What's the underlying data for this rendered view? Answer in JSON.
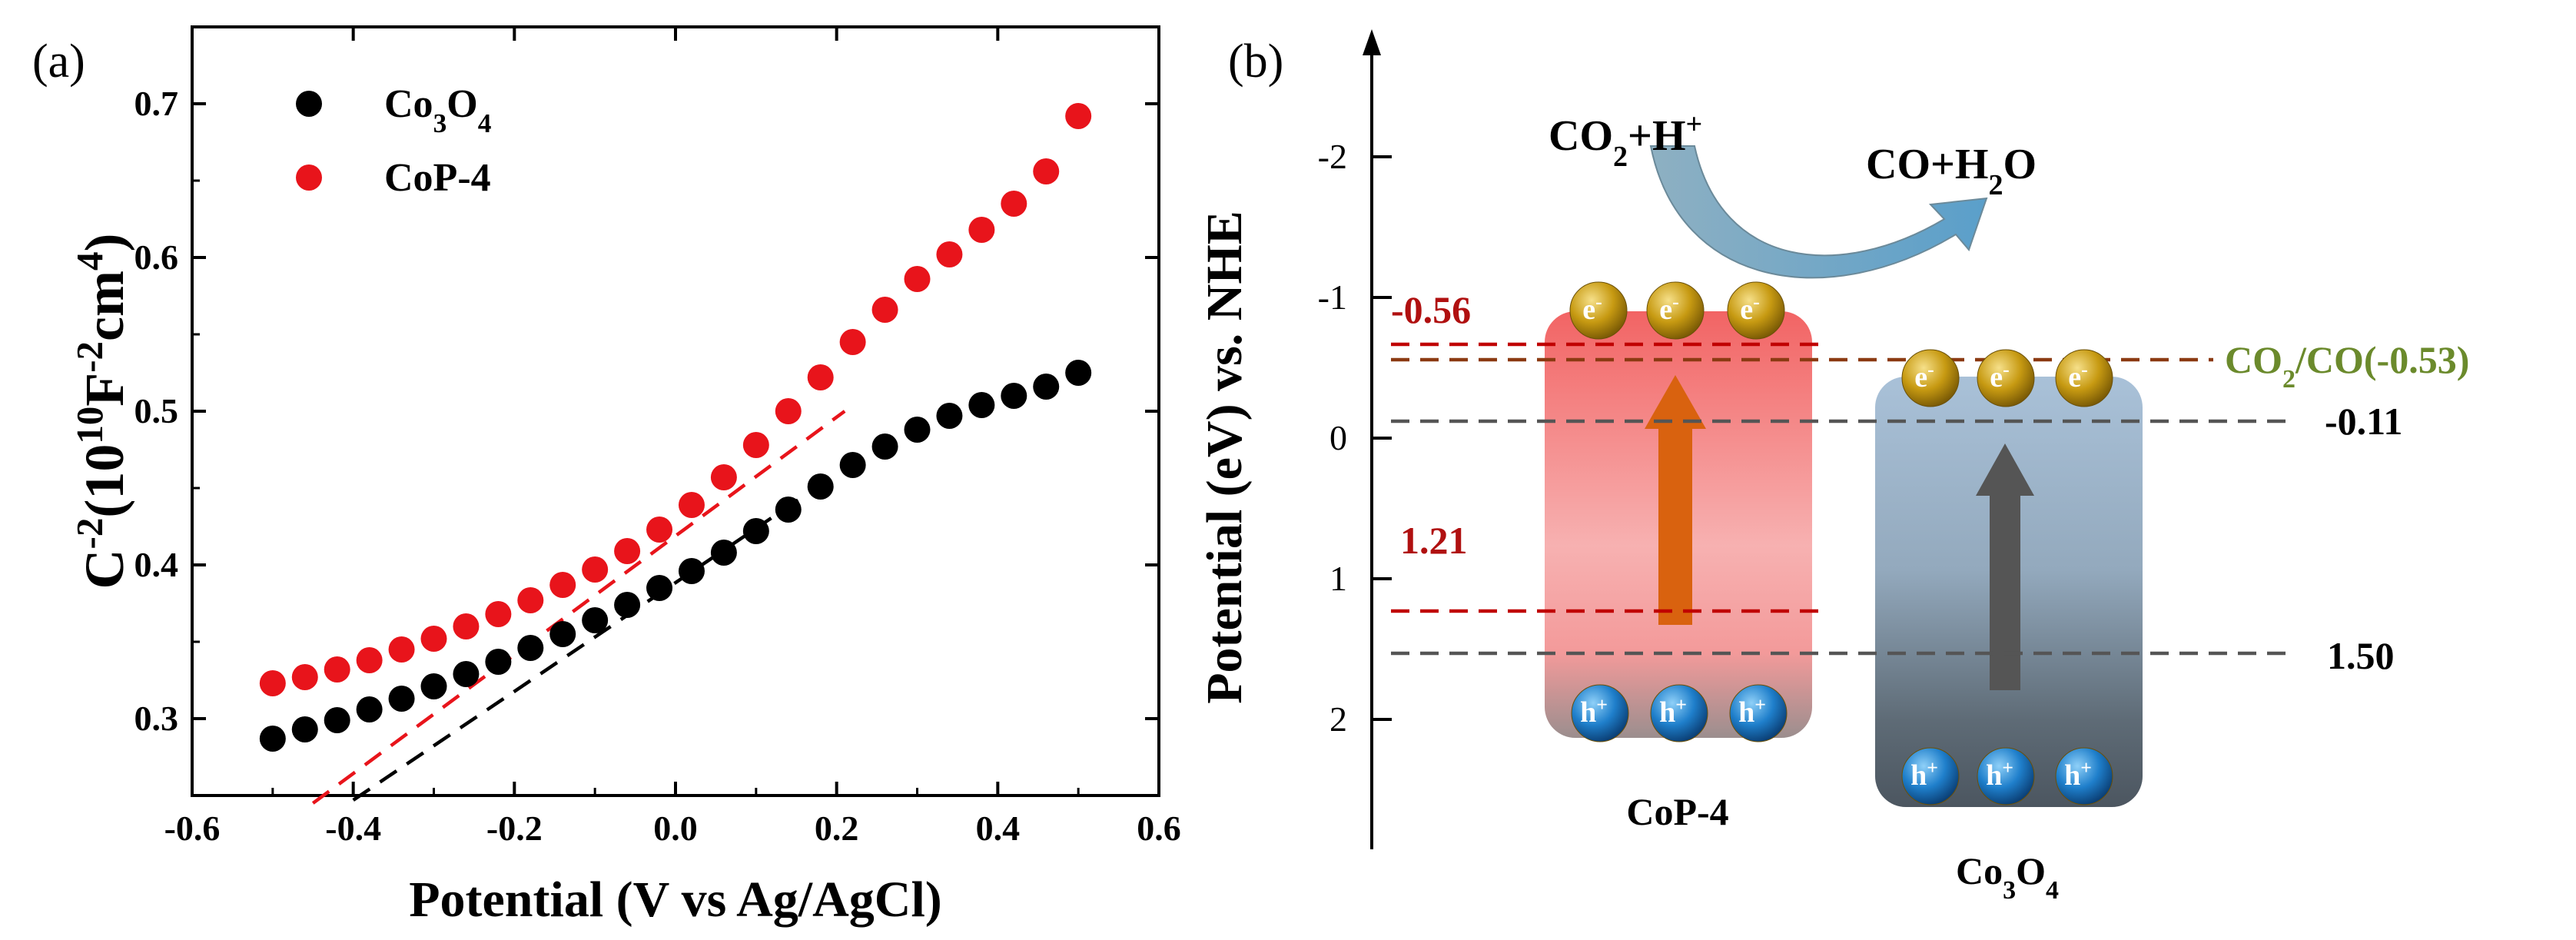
{
  "chart_data": [
    {
      "type": "scatter",
      "panel_label": "(a)",
      "xlabel": "Potential (V vs Ag/AgCl)",
      "ylabel": {
        "c": "C",
        "c_exp": "-2",
        "unit_10": "10",
        "unit_10_exp": "10",
        "unit_F": "F",
        "unit_F_exp": "-2",
        "unit_cm": "cm",
        "unit_cm_exp": "4"
      },
      "xlim": [
        -0.6,
        0.6
      ],
      "ylim": [
        0.25,
        0.75
      ],
      "xticks": [
        -0.6,
        -0.4,
        -0.2,
        0.0,
        0.2,
        0.4,
        0.6
      ],
      "xtick_labels": [
        "-0.6",
        "-0.4",
        "-0.2",
        "0.0",
        "0.2",
        "0.4",
        "0.6"
      ],
      "yticks": [
        0.3,
        0.4,
        0.5,
        0.6,
        0.7
      ],
      "ytick_labels": [
        "0.3",
        "0.4",
        "0.5",
        "0.6",
        "0.7"
      ],
      "legend_position": "top-left",
      "series": [
        {
          "name": "Co3O4",
          "legend": {
            "base": "Co",
            "sub1": "3",
            "mid": "O",
            "sub2": "4"
          },
          "color": "#000000",
          "x": [
            -0.5,
            -0.46,
            -0.42,
            -0.38,
            -0.34,
            -0.3,
            -0.26,
            -0.22,
            -0.18,
            -0.14,
            -0.1,
            -0.06,
            -0.02,
            0.02,
            0.06,
            0.1,
            0.14,
            0.18,
            0.22,
            0.26,
            0.3,
            0.34,
            0.38,
            0.42,
            0.46,
            0.5
          ],
          "y": [
            0.287,
            0.293,
            0.299,
            0.306,
            0.313,
            0.321,
            0.329,
            0.337,
            0.346,
            0.355,
            0.364,
            0.374,
            0.385,
            0.396,
            0.408,
            0.422,
            0.436,
            0.451,
            0.465,
            0.477,
            0.488,
            0.497,
            0.504,
            0.51,
            0.516,
            0.525
          ],
          "fit": {
            "x": [
              -0.4,
              0.16
            ],
            "y": [
              0.247,
              0.445
            ]
          }
        },
        {
          "name": "CoP-4",
          "legend": {
            "base": "CoP-4"
          },
          "color": "#e8141b",
          "x": [
            -0.5,
            -0.46,
            -0.42,
            -0.38,
            -0.34,
            -0.3,
            -0.26,
            -0.22,
            -0.18,
            -0.14,
            -0.1,
            -0.06,
            -0.02,
            0.02,
            0.06,
            0.1,
            0.14,
            0.18,
            0.22,
            0.26,
            0.3,
            0.34,
            0.38,
            0.42,
            0.46,
            0.5
          ],
          "y": [
            0.323,
            0.327,
            0.332,
            0.338,
            0.345,
            0.352,
            0.36,
            0.368,
            0.377,
            0.387,
            0.397,
            0.409,
            0.423,
            0.439,
            0.457,
            0.478,
            0.5,
            0.522,
            0.545,
            0.566,
            0.586,
            0.602,
            0.618,
            0.635,
            0.656,
            0.692
          ],
          "fit": {
            "x": [
              -0.45,
              0.21
            ],
            "y": [
              0.245,
              0.5
            ]
          }
        }
      ]
    },
    {
      "type": "band-diagram",
      "panel_label": "(b)",
      "ylabel": "Potential (eV) vs. NHE",
      "yticks": [
        -2,
        -1,
        0,
        1,
        2
      ],
      "ytick_labels": [
        "-2",
        "-1",
        "0",
        "1",
        "2"
      ],
      "materials": [
        {
          "name": "CoP-4",
          "cb": -0.56,
          "gap": 1.77,
          "vb_label": "1.21",
          "cb_label": "-0.56",
          "color": "#f25a5a"
        },
        {
          "name": "Co3O4",
          "label_base": "Co",
          "sub1": "3",
          "mid": "O",
          "sub2": "4",
          "cb": -0.11,
          "vb": 1.5,
          "cb_label": "-0.11",
          "vb_label": "1.50",
          "color": "#7d9dbb"
        }
      ],
      "redox": {
        "label_base": "CO",
        "sub": "2",
        "rest": "/CO(-0.53)",
        "value": -0.53,
        "color": "#6b8a2c"
      },
      "reaction": {
        "reactant": {
          "a": "CO",
          "sub": "2",
          "b": "+H",
          "sup": "+"
        },
        "product": {
          "a": "CO+H",
          "sub": "2",
          "b": "O"
        }
      },
      "electron": {
        "base": "e",
        "sup": "-"
      },
      "hole": {
        "base": "h",
        "sup": "+"
      }
    }
  ]
}
